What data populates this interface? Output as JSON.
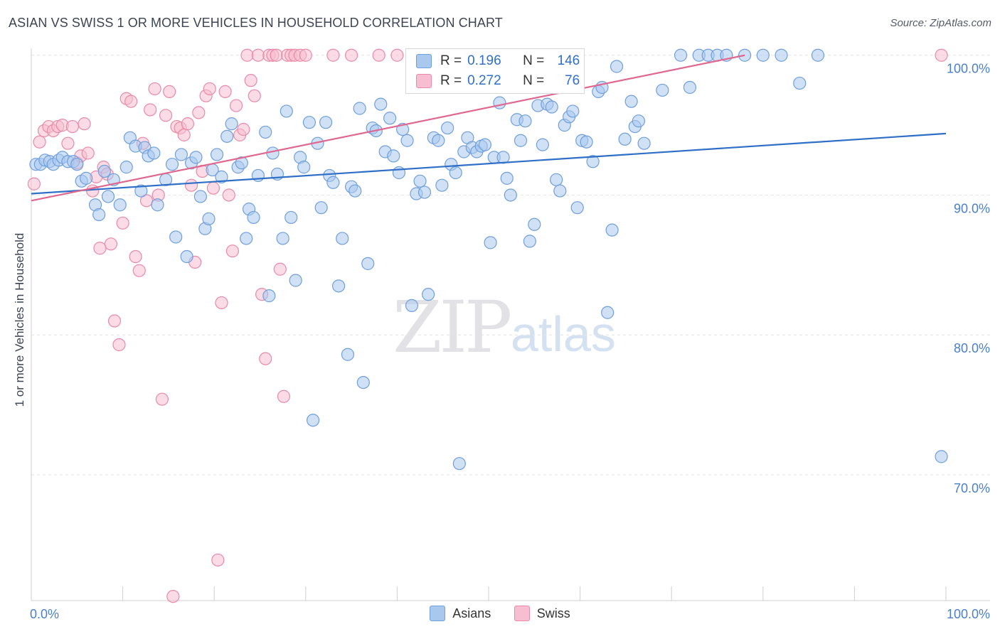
{
  "title": "ASIAN VS SWISS 1 OR MORE VEHICLES IN HOUSEHOLD CORRELATION CHART",
  "source": "Source: ZipAtlas.com",
  "watermark_zip": "ZIP",
  "watermark_atlas": "atlas",
  "legend": {
    "asians": {
      "r_label": "R =",
      "r_value": "0.196",
      "n_label": "N =",
      "n_value": "146"
    },
    "swiss": {
      "r_label": "R =",
      "r_value": "0.272",
      "n_label": "N =",
      "n_value": "76"
    }
  },
  "bottom_legend": {
    "asians": "Asians",
    "swiss": "Swiss"
  },
  "colors": {
    "asians_fill": "#a9c8ee",
    "asians_stroke": "#6f9fdc",
    "asians_line": "#2f6fc8",
    "swiss_fill": "#f7bdd0",
    "swiss_stroke": "#e98aa8",
    "swiss_line": "#e0678f",
    "tick_label": "#4a7fc9",
    "grid": "#e4e4e4"
  },
  "chart_data": {
    "type": "scatter",
    "title": "ASIAN VS SWISS 1 OR MORE VEHICLES IN HOUSEHOLD CORRELATION CHART",
    "xlabel": "",
    "ylabel": "1 or more Vehicles in Household",
    "x_tick_labels": [
      "0.0%",
      "100.0%"
    ],
    "y_tick_labels": [
      "100.0%",
      "90.0%",
      "80.0%",
      "70.0%"
    ],
    "y_ticks": [
      100,
      90,
      80,
      70
    ],
    "xlim": [
      0,
      100
    ],
    "ylim": [
      61,
      100.8
    ],
    "grid": true,
    "legend_position": "top-center",
    "series": [
      {
        "name": "Asians",
        "trend": {
          "x": [
            0,
            100
          ],
          "y": [
            90.1,
            94.4
          ]
        },
        "points": [
          [
            0.5,
            92.2
          ],
          [
            1.0,
            92.2
          ],
          [
            1.5,
            92.5
          ],
          [
            2.0,
            92.4
          ],
          [
            2.4,
            92.2
          ],
          [
            3.0,
            92.5
          ],
          [
            3.4,
            92.7
          ],
          [
            4.0,
            92.4
          ],
          [
            4.6,
            92.4
          ],
          [
            5.0,
            92.2
          ],
          [
            5.5,
            91.0
          ],
          [
            6.0,
            91.2
          ],
          [
            7.0,
            89.3
          ],
          [
            7.4,
            88.6
          ],
          [
            8.0,
            91.7
          ],
          [
            8.4,
            89.9
          ],
          [
            9.0,
            91.1
          ],
          [
            9.7,
            89.3
          ],
          [
            10.4,
            92.0
          ],
          [
            10.8,
            94.1
          ],
          [
            11.4,
            93.5
          ],
          [
            12.0,
            90.3
          ],
          [
            12.4,
            93.4
          ],
          [
            12.8,
            92.8
          ],
          [
            13.4,
            93.0
          ],
          [
            13.8,
            89.3
          ],
          [
            14.7,
            91.1
          ],
          [
            15.4,
            92.2
          ],
          [
            15.8,
            87.0
          ],
          [
            16.4,
            92.9
          ],
          [
            17.0,
            85.6
          ],
          [
            17.5,
            92.3
          ],
          [
            18.0,
            92.7
          ],
          [
            18.5,
            89.9
          ],
          [
            19.0,
            87.6
          ],
          [
            19.4,
            88.3
          ],
          [
            19.8,
            91.8
          ],
          [
            20.3,
            92.9
          ],
          [
            20.8,
            91.3
          ],
          [
            21.4,
            94.2
          ],
          [
            21.9,
            95.1
          ],
          [
            22.6,
            92.0
          ],
          [
            23.0,
            92.3
          ],
          [
            23.5,
            86.9
          ],
          [
            23.8,
            89.0
          ],
          [
            24.3,
            88.4
          ],
          [
            24.8,
            91.4
          ],
          [
            25.6,
            94.5
          ],
          [
            26.0,
            82.8
          ],
          [
            26.4,
            93.0
          ],
          [
            26.9,
            91.5
          ],
          [
            27.5,
            86.9
          ],
          [
            27.9,
            96.0
          ],
          [
            28.4,
            88.4
          ],
          [
            28.9,
            83.9
          ],
          [
            29.4,
            92.7
          ],
          [
            29.8,
            92.0
          ],
          [
            30.4,
            95.2
          ],
          [
            30.8,
            73.9
          ],
          [
            31.3,
            93.7
          ],
          [
            31.7,
            89.1
          ],
          [
            32.2,
            95.2
          ],
          [
            32.6,
            91.4
          ],
          [
            33.0,
            90.9
          ],
          [
            33.6,
            83.5
          ],
          [
            34.0,
            86.9
          ],
          [
            34.6,
            78.6
          ],
          [
            35.0,
            90.6
          ],
          [
            35.4,
            90.3
          ],
          [
            35.9,
            96.2
          ],
          [
            36.3,
            76.6
          ],
          [
            36.8,
            85.1
          ],
          [
            37.3,
            94.8
          ],
          [
            37.7,
            94.6
          ],
          [
            38.2,
            96.5
          ],
          [
            38.7,
            93.1
          ],
          [
            39.2,
            95.5
          ],
          [
            39.6,
            92.8
          ],
          [
            40.2,
            91.6
          ],
          [
            40.6,
            94.7
          ],
          [
            41.1,
            93.9
          ],
          [
            41.6,
            82.1
          ],
          [
            42.1,
            90.1
          ],
          [
            42.5,
            91.0
          ],
          [
            43.0,
            90.2
          ],
          [
            43.4,
            82.9
          ],
          [
            44.0,
            94.1
          ],
          [
            44.5,
            93.9
          ],
          [
            44.9,
            90.7
          ],
          [
            45.5,
            94.8
          ],
          [
            45.9,
            92.2
          ],
          [
            46.4,
            91.6
          ],
          [
            46.8,
            70.8
          ],
          [
            47.3,
            93.1
          ],
          [
            47.7,
            94.1
          ],
          [
            48.2,
            93.4
          ],
          [
            48.7,
            93.1
          ],
          [
            49.2,
            93.5
          ],
          [
            49.6,
            93.6
          ],
          [
            50.2,
            86.6
          ],
          [
            50.6,
            92.7
          ],
          [
            51.2,
            96.6
          ],
          [
            51.6,
            92.7
          ],
          [
            52.0,
            91.2
          ],
          [
            52.4,
            90.0
          ],
          [
            53.1,
            95.4
          ],
          [
            53.5,
            93.9
          ],
          [
            54.0,
            95.3
          ],
          [
            54.5,
            86.7
          ],
          [
            55.0,
            87.9
          ],
          [
            55.4,
            96.4
          ],
          [
            55.9,
            93.6
          ],
          [
            56.4,
            96.5
          ],
          [
            56.9,
            96.3
          ],
          [
            57.4,
            91.1
          ],
          [
            57.8,
            90.3
          ],
          [
            58.3,
            95.0
          ],
          [
            58.8,
            95.6
          ],
          [
            59.2,
            96.0
          ],
          [
            59.7,
            89.1
          ],
          [
            60.2,
            93.9
          ],
          [
            60.7,
            93.8
          ],
          [
            61.4,
            92.4
          ],
          [
            62.0,
            97.4
          ],
          [
            62.4,
            97.7
          ],
          [
            63.0,
            81.6
          ],
          [
            63.5,
            87.5
          ],
          [
            64.0,
            99.2
          ],
          [
            64.9,
            94.0
          ],
          [
            65.6,
            96.7
          ],
          [
            66.0,
            94.9
          ],
          [
            66.4,
            95.3
          ],
          [
            67.0,
            93.7
          ],
          [
            69.0,
            97.5
          ],
          [
            71.0,
            100.0
          ],
          [
            72.0,
            97.7
          ],
          [
            73.0,
            100.0
          ],
          [
            74.0,
            100.0
          ],
          [
            75.0,
            100.0
          ],
          [
            76.0,
            100.0
          ],
          [
            78.0,
            100.0
          ],
          [
            80.0,
            100.0
          ],
          [
            82.0,
            100.0
          ],
          [
            84.0,
            98.0
          ],
          [
            86.0,
            100.0
          ],
          [
            99.5,
            71.3
          ]
        ]
      },
      {
        "name": "Swiss",
        "trend": {
          "x": [
            0,
            78
          ],
          "y": [
            89.6,
            100.0
          ]
        },
        "points": [
          [
            0.3,
            90.8
          ],
          [
            0.9,
            93.8
          ],
          [
            1.4,
            94.6
          ],
          [
            1.9,
            94.9
          ],
          [
            2.4,
            94.6
          ],
          [
            2.9,
            94.9
          ],
          [
            3.4,
            95.0
          ],
          [
            4.0,
            93.7
          ],
          [
            4.5,
            94.9
          ],
          [
            5.0,
            92.3
          ],
          [
            5.4,
            92.8
          ],
          [
            5.8,
            95.1
          ],
          [
            6.2,
            93.0
          ],
          [
            6.7,
            90.3
          ],
          [
            7.1,
            91.3
          ],
          [
            7.5,
            86.2
          ],
          [
            7.9,
            92.0
          ],
          [
            8.3,
            91.5
          ],
          [
            8.7,
            86.5
          ],
          [
            9.1,
            81.0
          ],
          [
            9.6,
            79.3
          ],
          [
            10.0,
            88.0
          ],
          [
            10.4,
            96.9
          ],
          [
            10.9,
            96.7
          ],
          [
            11.4,
            85.6
          ],
          [
            11.8,
            84.6
          ],
          [
            12.2,
            93.7
          ],
          [
            12.6,
            89.6
          ],
          [
            13.0,
            96.1
          ],
          [
            13.5,
            97.6
          ],
          [
            13.9,
            90.0
          ],
          [
            14.3,
            75.4
          ],
          [
            14.7,
            95.7
          ],
          [
            15.1,
            97.4
          ],
          [
            15.5,
            61.3
          ],
          [
            15.9,
            94.9
          ],
          [
            16.3,
            94.8
          ],
          [
            16.7,
            94.3
          ],
          [
            17.1,
            95.1
          ],
          [
            17.5,
            90.7
          ],
          [
            17.9,
            85.2
          ],
          [
            18.3,
            95.9
          ],
          [
            18.7,
            91.7
          ],
          [
            19.1,
            97.1
          ],
          [
            19.5,
            97.6
          ],
          [
            19.9,
            90.5
          ],
          [
            20.4,
            63.9
          ],
          [
            20.8,
            82.3
          ],
          [
            21.2,
            97.4
          ],
          [
            21.6,
            90.0
          ],
          [
            22.0,
            86.0
          ],
          [
            22.4,
            96.4
          ],
          [
            22.8,
            94.3
          ],
          [
            23.2,
            94.7
          ],
          [
            23.6,
            100.0
          ],
          [
            24.0,
            98.2
          ],
          [
            24.4,
            97.1
          ],
          [
            24.8,
            100.0
          ],
          [
            25.2,
            82.9
          ],
          [
            25.6,
            78.3
          ],
          [
            26.0,
            100.0
          ],
          [
            26.4,
            100.0
          ],
          [
            26.8,
            100.0
          ],
          [
            27.2,
            84.7
          ],
          [
            27.6,
            75.6
          ],
          [
            28.0,
            100.0
          ],
          [
            28.4,
            100.0
          ],
          [
            28.8,
            100.0
          ],
          [
            29.4,
            100.0
          ],
          [
            30.0,
            100.0
          ],
          [
            33.0,
            100.0
          ],
          [
            35.0,
            100.0
          ],
          [
            38.0,
            100.0
          ],
          [
            40.0,
            100.0
          ],
          [
            45.0,
            100.0
          ],
          [
            99.5,
            100.0
          ]
        ]
      }
    ]
  }
}
